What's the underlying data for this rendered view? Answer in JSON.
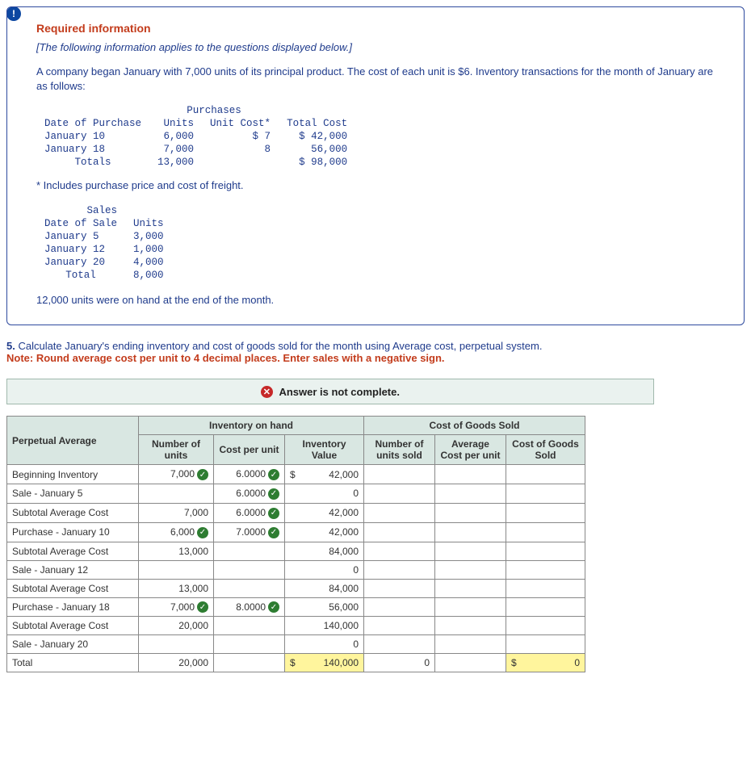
{
  "alert_icon_label": "!",
  "required_header": "Required information",
  "preface": "[The following information applies to the questions displayed below.]",
  "intro": "A company began January with 7,000 units of its principal product. The cost of each unit is $6. Inventory transactions for the month of January are as follows:",
  "purchases_table": {
    "header_date": "Date of Purchase",
    "header_group": "Purchases",
    "col_units": "Units",
    "col_unitcost": "Unit Cost*",
    "col_total": "Total Cost",
    "rows": [
      {
        "date": "January 10",
        "units": "6,000",
        "unitcost": "$ 7",
        "total": "$ 42,000"
      },
      {
        "date": "January 18",
        "units": "7,000",
        "unitcost": "8",
        "total": "56,000"
      }
    ],
    "totals_label": "Totals",
    "totals_units": "13,000",
    "totals_total": "$ 98,000"
  },
  "footnote": "* Includes purchase price and cost of freight.",
  "sales_table": {
    "group": "Sales",
    "header_date": "Date of Sale",
    "col_units": "Units",
    "rows": [
      {
        "date": "January 5",
        "units": "3,000"
      },
      {
        "date": "January 12",
        "units": "1,000"
      },
      {
        "date": "January 20",
        "units": "4,000"
      }
    ],
    "total_label": "Total",
    "total_units": "8,000"
  },
  "endnote": "12,000 units were on hand at the end of the month.",
  "q_number": "5.",
  "q_text": " Calculate January's ending inventory and cost of goods sold for the month using Average cost, perpetual system.",
  "note": "Note: Round average cost per unit to 4 decimal places. Enter sales with a negative sign.",
  "status_icon": "✕",
  "status_msg": "Answer is not complete.",
  "answer_table": {
    "corner": "Perpetual Average",
    "group_inv": "Inventory on hand",
    "group_cogs": "Cost of Goods Sold",
    "cols": {
      "num_units": "Number of units",
      "cost_per": "Cost per unit",
      "inv_val": "Inventory Value",
      "num_sold": "Number of units sold",
      "avg_cost": "Average Cost per unit",
      "cogs": "Cost of Goods Sold"
    },
    "rows": [
      {
        "label": "Beginning Inventory",
        "units": "7,000",
        "units_chk": true,
        "cost": "6.0000",
        "cost_chk": true,
        "val": "42,000",
        "val_prefix": "$"
      },
      {
        "label": "Sale - January 5",
        "cost": "6.0000",
        "cost_chk": true,
        "val": "0"
      },
      {
        "label": "Subtotal Average Cost",
        "units": "7,000",
        "cost": "6.0000",
        "cost_chk": true,
        "val": "42,000"
      },
      {
        "label": "Purchase - January 10",
        "units": "6,000",
        "units_chk": true,
        "cost": "7.0000",
        "cost_chk": true,
        "val": "42,000"
      },
      {
        "label": "Subtotal Average Cost",
        "units": "13,000",
        "val": "84,000"
      },
      {
        "label": "Sale - January 12",
        "val": "0"
      },
      {
        "label": "Subtotal Average Cost",
        "units": "13,000",
        "val": "84,000"
      },
      {
        "label": "Purchase - January 18",
        "units": "7,000",
        "units_chk": true,
        "cost": "8.0000",
        "cost_chk": true,
        "val": "56,000"
      },
      {
        "label": "Subtotal Average Cost",
        "units": "20,000",
        "val": "140,000"
      },
      {
        "label": "Sale - January 20",
        "val": "0"
      },
      {
        "label": "Total",
        "units": "20,000",
        "val": "140,000",
        "val_prefix": "$",
        "val_hl": true,
        "sold": "0",
        "cogs": "0",
        "cogs_prefix": "$",
        "cogs_hl": true
      }
    ]
  }
}
